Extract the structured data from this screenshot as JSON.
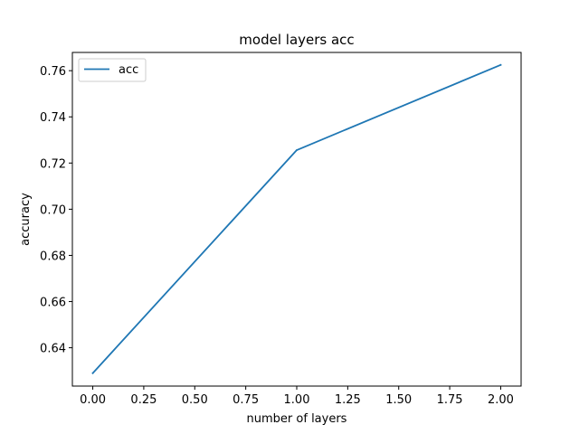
{
  "chart_data": {
    "type": "line",
    "title": "model layers acc",
    "xlabel": "number of layers",
    "ylabel": "accuracy",
    "xlim": [
      -0.1,
      2.1
    ],
    "ylim": [
      0.6234,
      0.7679
    ],
    "xticks": [
      0.0,
      0.25,
      0.5,
      0.75,
      1.0,
      1.25,
      1.5,
      1.75,
      2.0
    ],
    "xtick_labels": [
      "0.00",
      "0.25",
      "0.50",
      "0.75",
      "1.00",
      "1.25",
      "1.50",
      "1.75",
      "2.00"
    ],
    "yticks": [
      0.64,
      0.66,
      0.68,
      0.7,
      0.72,
      0.74,
      0.76
    ],
    "ytick_labels": [
      "0.64",
      "0.66",
      "0.68",
      "0.70",
      "0.72",
      "0.74",
      "0.76"
    ],
    "grid": false,
    "legend_position": "top-left",
    "series": [
      {
        "name": "acc",
        "color": "#1f77b4",
        "x": [
          0,
          1,
          2
        ],
        "y": [
          0.629,
          0.7256,
          0.7625
        ]
      }
    ]
  }
}
